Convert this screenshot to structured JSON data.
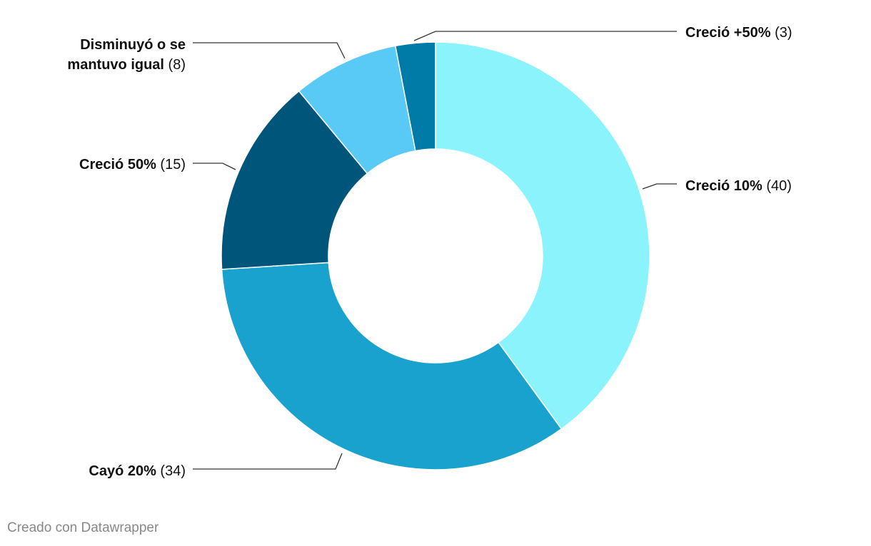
{
  "chart_data": {
    "type": "pie",
    "donut": true,
    "title": "",
    "slices": [
      {
        "label": "Creció 10%",
        "value": 40,
        "color": "#8af3fc"
      },
      {
        "label": "Cayó 20%",
        "value": 34,
        "color": "#1aa2cf"
      },
      {
        "label": "Creció 50%",
        "value": 15,
        "color": "#00557b"
      },
      {
        "label": "Disminuyó o se mantuvo igual",
        "value": 8,
        "color": "#58caf5"
      },
      {
        "label": "Creció +50%",
        "value": 3,
        "color": "#007aa6"
      }
    ]
  },
  "footer": {
    "credit": "Creado con Datawrapper"
  }
}
